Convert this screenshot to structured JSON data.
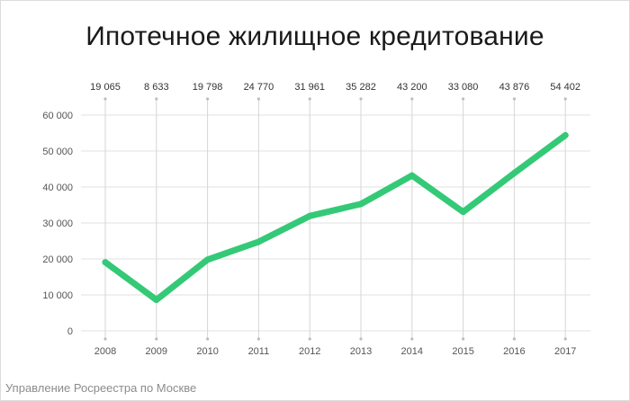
{
  "title": "Ипотечное жилищное кредитование",
  "source": "Управление Росреестра по Москве",
  "colors": {
    "line": "#34c977",
    "grid": "#e2e2e2",
    "vgrid": "#d6d6d6",
    "text": "#555555"
  },
  "chart_data": {
    "type": "line",
    "title": "Ипотечное жилищное кредитование",
    "xlabel": "",
    "ylabel": "",
    "categories": [
      "2008",
      "2009",
      "2010",
      "2011",
      "2012",
      "2013",
      "2014",
      "2015",
      "2016",
      "2017"
    ],
    "series": [
      {
        "values": [
          19065,
          8633,
          19798,
          24770,
          31961,
          35282,
          43200,
          33080,
          43876,
          54402
        ]
      }
    ],
    "data_labels": [
      "19 065",
      "8 633",
      "19 798",
      "24 770",
      "31 961",
      "35 282",
      "43 200",
      "33 080",
      "43 876",
      "54 402"
    ],
    "yticks": [
      0,
      10000,
      20000,
      30000,
      40000,
      50000,
      60000
    ],
    "ytick_labels": [
      "0",
      "10 000",
      "20 000",
      "30 000",
      "40 000",
      "50 000",
      "60 000"
    ],
    "ylim": [
      0,
      60000
    ],
    "grid": true,
    "legend": "none"
  }
}
